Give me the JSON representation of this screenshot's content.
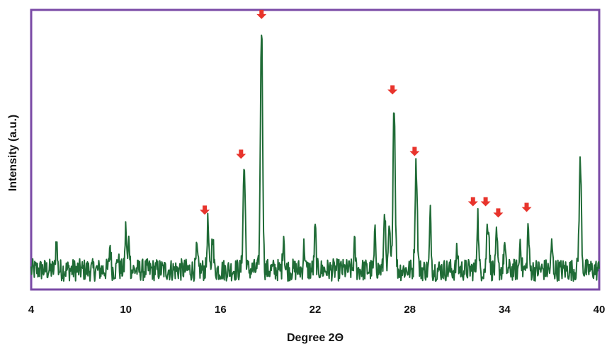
{
  "chart_data": {
    "type": "line",
    "title": "",
    "xlabel": "Degree 2Θ",
    "ylabel": "Intensity (a.u.)",
    "xlim": [
      4,
      40
    ],
    "xticks": [
      "4",
      "10",
      "16",
      "22",
      "28",
      "34",
      "40"
    ],
    "ylim": [
      0,
      100
    ],
    "grid": false,
    "legend": "none",
    "colors": {
      "line": "#1f6b36",
      "frame": "#7a4aa6",
      "marker": "#e8342c"
    },
    "baseline": 7,
    "noise_amplitude": 4,
    "series": [
      {
        "peaks": [
          {
            "x": 5.6,
            "y": 18
          },
          {
            "x": 9.0,
            "y": 16
          },
          {
            "x": 9.5,
            "y": 12
          },
          {
            "x": 10.0,
            "y": 22
          },
          {
            "x": 10.2,
            "y": 18
          },
          {
            "x": 14.5,
            "y": 14
          },
          {
            "x": 15.2,
            "y": 24
          },
          {
            "x": 15.5,
            "y": 21
          },
          {
            "x": 17.5,
            "y": 44
          },
          {
            "x": 18.6,
            "y": 94
          },
          {
            "x": 20.0,
            "y": 20
          },
          {
            "x": 21.3,
            "y": 16
          },
          {
            "x": 22.0,
            "y": 22
          },
          {
            "x": 24.5,
            "y": 16
          },
          {
            "x": 25.8,
            "y": 20
          },
          {
            "x": 26.4,
            "y": 30
          },
          {
            "x": 26.7,
            "y": 22
          },
          {
            "x": 27.0,
            "y": 67
          },
          {
            "x": 28.4,
            "y": 45
          },
          {
            "x": 29.3,
            "y": 27
          },
          {
            "x": 31.0,
            "y": 14
          },
          {
            "x": 32.3,
            "y": 27
          },
          {
            "x": 32.9,
            "y": 21
          },
          {
            "x": 33.0,
            "y": 20
          },
          {
            "x": 33.5,
            "y": 19
          },
          {
            "x": 34.0,
            "y": 16
          },
          {
            "x": 35.0,
            "y": 18
          },
          {
            "x": 35.5,
            "y": 23
          },
          {
            "x": 37.0,
            "y": 16
          },
          {
            "x": 38.8,
            "y": 45
          }
        ]
      }
    ],
    "annotations": [
      {
        "type": "arrow",
        "x": 15.0,
        "y": 28
      },
      {
        "type": "arrow",
        "x": 17.3,
        "y": 48
      },
      {
        "type": "arrow",
        "x": 18.6,
        "y": 98
      },
      {
        "type": "arrow",
        "x": 26.9,
        "y": 71
      },
      {
        "type": "arrow",
        "x": 28.3,
        "y": 49
      },
      {
        "type": "arrow",
        "x": 32.0,
        "y": 31
      },
      {
        "type": "arrow",
        "x": 32.8,
        "y": 31
      },
      {
        "type": "arrow",
        "x": 33.6,
        "y": 27
      },
      {
        "type": "arrow",
        "x": 35.4,
        "y": 29
      }
    ]
  }
}
